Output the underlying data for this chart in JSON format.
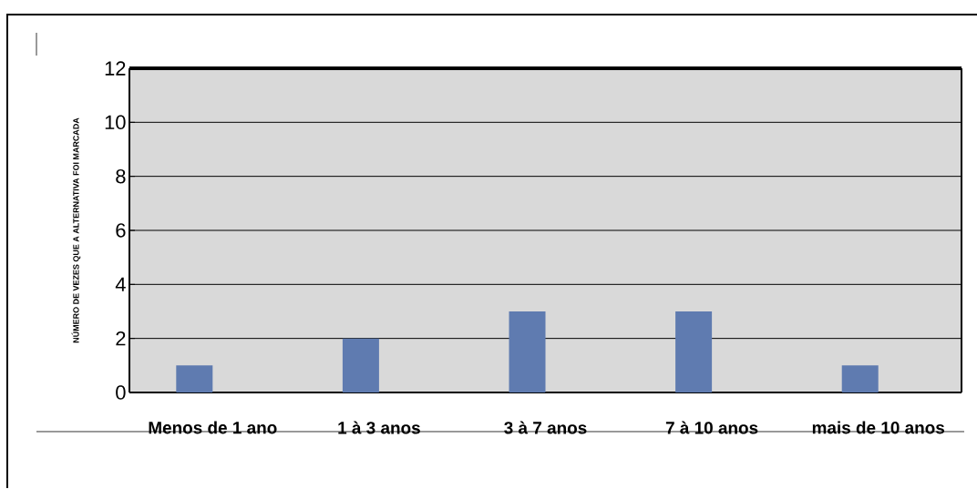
{
  "chart_data": {
    "type": "bar",
    "ylabel": "NÚMERO DE  VEZES QUE A ALTERNATIVA FOI MARCADA",
    "categories": [
      "Menos de 1 ano",
      "1 à 3 anos",
      "3 à 7 anos",
      "7 à 10 anos",
      "mais de 10 anos"
    ],
    "values": [
      1,
      2,
      3,
      3,
      1
    ],
    "color": "#5f7bb0",
    "ylim": [
      0,
      12
    ],
    "yticks": [
      0,
      2,
      4,
      6,
      8,
      10,
      12
    ],
    "grid": "y"
  }
}
